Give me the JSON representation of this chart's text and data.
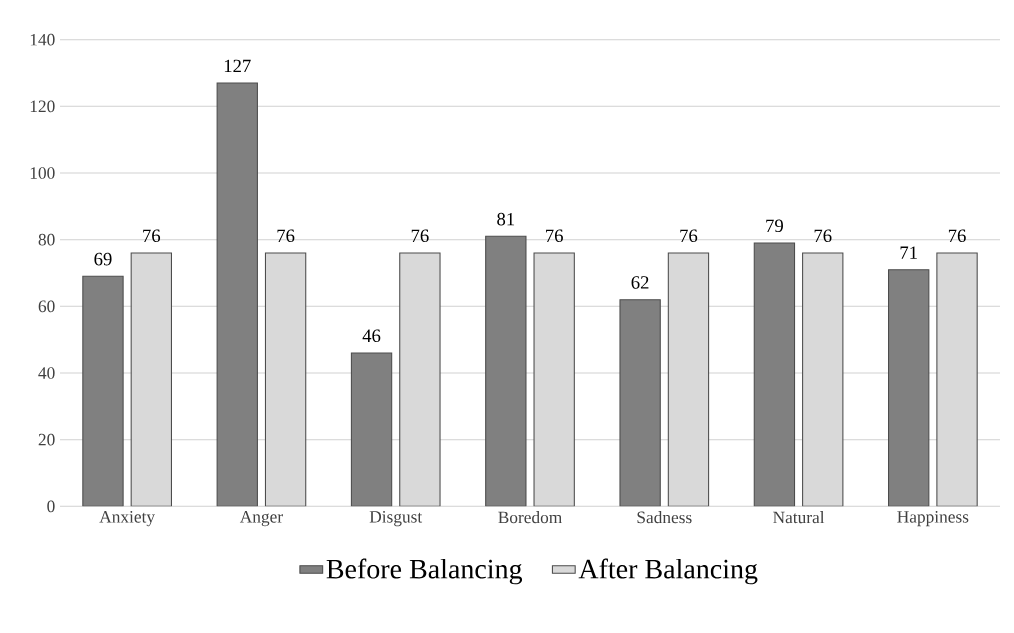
{
  "chart_data": {
    "type": "bar",
    "categories": [
      "Anxiety",
      "Anger",
      "Disgust",
      "Boredom",
      "Sadness",
      "Natural",
      "Happiness"
    ],
    "series": [
      {
        "name": "Before Balancing",
        "color": "#808080",
        "values": [
          69,
          127,
          46,
          81,
          62,
          79,
          71
        ]
      },
      {
        "name": "After Balancing",
        "color": "#d9d9d9",
        "values": [
          76,
          76,
          76,
          76,
          76,
          76,
          76
        ]
      }
    ],
    "ylim": [
      0,
      140
    ],
    "yticks": [
      0,
      20,
      40,
      60,
      80,
      100,
      120,
      140
    ],
    "grid": "y",
    "legend": "bottom",
    "data_labels": true
  }
}
